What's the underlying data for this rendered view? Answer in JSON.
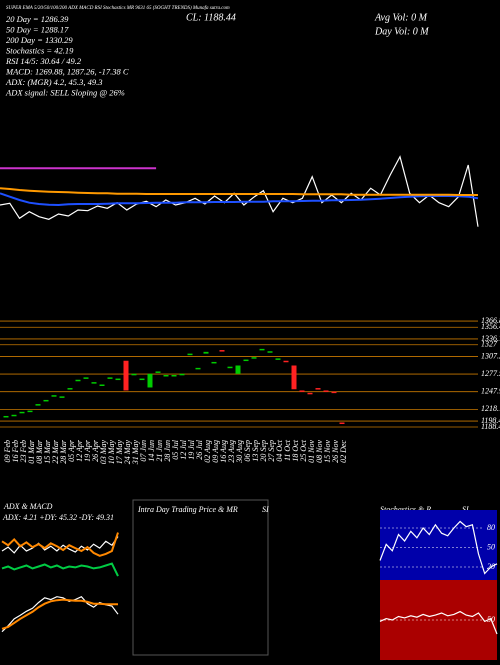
{
  "header": {
    "top_line": "SUPER EMA 5/20/50/100/200 ADX MACD RSI Stochastics MR 9631 65 (SOGHT TRENDS) Munafa sutra.com",
    "lines": [
      "20 Day = 1286.39",
      "50 Day = 1288.17",
      "200 Day = 1330.29",
      "Stochastics = 42.19",
      "RSI 14/5: 30.64 / 49.2",
      "MACD: 1269.88, 1287.26, -17.38  C",
      "ADX:      (MGR) 4.2, 45.3, 49.3",
      "ADX  signal: SELL Sloping @ 26%"
    ],
    "center": "CL: 1188.44",
    "right": [
      "Avg Vol: 0  M",
      "Day Vol: 0  M"
    ]
  },
  "panels": {
    "adx_title": "ADX  & MACD",
    "adx_stats": "ADX: 4.21 +DY: 45.32 -DY: 49.31",
    "intraday_title": "Intra Day Trading Price  & MR",
    "intraday_si": "SI",
    "stoch_title": "Stochastics & R",
    "stoch_si": "SI"
  },
  "chart_data": [
    {
      "type": "line",
      "ylim": [
        1150,
        1420
      ],
      "series": [
        {
          "color": "#ffffff",
          "values": [
            1255,
            1260,
            1215,
            1235,
            1220,
            1212,
            1228,
            1222,
            1240,
            1238,
            1252,
            1245,
            1262,
            1240,
            1258,
            1266,
            1250,
            1270,
            1255,
            1262,
            1275,
            1258,
            1282,
            1262,
            1290,
            1255,
            1278,
            1298,
            1235,
            1275,
            1262,
            1275,
            1340,
            1262,
            1285,
            1262,
            1290,
            1270,
            1305,
            1285,
            1345,
            1400,
            1290,
            1262,
            1285,
            1262,
            1250,
            1280,
            1375,
            1190
          ]
        },
        {
          "color": "#1e50ff",
          "values": [
            1290,
            1280,
            1270,
            1262,
            1258,
            1256,
            1255,
            1257,
            1258,
            1258,
            1258,
            1259,
            1260,
            1260,
            1260,
            1261,
            1262,
            1262,
            1262,
            1263,
            1263,
            1263,
            1264,
            1264,
            1264,
            1265,
            1265,
            1265,
            1266,
            1266,
            1266,
            1267,
            1268,
            1268,
            1269,
            1269,
            1270,
            1271,
            1272,
            1274,
            1276,
            1278,
            1280,
            1281,
            1282,
            1282,
            1282,
            1281,
            1280,
            1275
          ]
        },
        {
          "color": "#ff9900",
          "values": [
            1305,
            1303,
            1300,
            1298,
            1296,
            1295,
            1294,
            1293,
            1292,
            1291,
            1290,
            1290,
            1289,
            1289,
            1289,
            1288,
            1288,
            1288,
            1288,
            1288,
            1288,
            1288,
            1288,
            1288,
            1288,
            1288,
            1288,
            1288,
            1288,
            1288,
            1288,
            1287,
            1287,
            1287,
            1287,
            1287,
            1286,
            1286,
            1286,
            1286,
            1286,
            1286,
            1286,
            1286,
            1286,
            1286,
            1286,
            1285,
            1285,
            1285
          ]
        },
        {
          "color": "#cc33cc",
          "values": [
            1365,
            1365,
            1365,
            1365,
            1365,
            1365,
            1365,
            1365,
            1365,
            1365,
            1365,
            1365,
            1365,
            1365,
            1365,
            1365,
            1365,
            null,
            null,
            null,
            null,
            null,
            null,
            null,
            null,
            null,
            null,
            null,
            null,
            null,
            null,
            null,
            null,
            null,
            null,
            null,
            null,
            null,
            null,
            null,
            null,
            null,
            null,
            null,
            null,
            null,
            null,
            null,
            null,
            null
          ]
        }
      ]
    },
    {
      "type": "candlestick",
      "ylim": [
        1180,
        1372
      ],
      "grid_color": "#c87800",
      "yticks": [
        1366.88,
        1356.42,
        1336.71,
        1327,
        1307.28,
        1277.57,
        1247.9,
        1218.15,
        1198.44,
        1188.44
      ],
      "categories": [
        "09 Feb",
        "16 Feb",
        "23 Feb",
        "01 Mar",
        "08 Mar",
        "15 Mar",
        "22 Mar",
        "28 Mar",
        "05 Apr",
        "12 Apr",
        "19 Apr",
        "26 Apr",
        "03 May",
        "10 May",
        "17 May",
        "24 May",
        "31 May",
        "07 Jun",
        "14 Jun",
        "21 Jun",
        "28 Jun",
        "05 Jul",
        "12 Jul",
        "19 Jul",
        "26 Jul",
        "02 Aug",
        "09 Aug",
        "16 Aug",
        "23 Aug",
        "30 Aug",
        "06 Sep",
        "13 Sep",
        "20 Sep",
        "27 Sep",
        "04 Oct",
        "11 Oct",
        "18 Oct",
        "25 Oct",
        "01 Nov",
        "08 Nov",
        "15 Nov",
        "26 Nov",
        "02 Dec"
      ],
      "open": [
        1205,
        1207,
        1212,
        1215,
        1225,
        1232,
        1240,
        1238,
        1252,
        1266,
        1270,
        1262,
        1258,
        1270,
        1268,
        1300,
        1276,
        1268,
        1255,
        1280,
        1274,
        1274,
        1276,
        1310,
        1286,
        1312,
        1296,
        1318,
        1288,
        1278,
        1300,
        1304,
        1318,
        1314,
        1302,
        1300,
        1292,
        1250,
        1246,
        1254,
        1250,
        1248,
        1196
      ],
      "close": [
        1207,
        1209,
        1214,
        1216,
        1227,
        1234,
        1242,
        1240,
        1254,
        1268,
        1272,
        1264,
        1260,
        1272,
        1270,
        1250,
        1278,
        1270,
        1278,
        1282,
        1276,
        1276,
        1278,
        1312,
        1288,
        1315,
        1298,
        1316,
        1290,
        1292,
        1302,
        1306,
        1320,
        1316,
        1304,
        1298,
        1252,
        1248,
        1244,
        1252,
        1248,
        1246,
        1194
      ]
    },
    {
      "type": "line",
      "ylim": [
        0,
        60
      ],
      "series": [
        {
          "color": "#ffffff",
          "values": [
            30,
            34,
            28,
            36,
            30,
            33,
            38,
            31,
            35,
            30,
            36,
            32,
            29,
            35,
            31,
            37,
            33,
            40,
            36,
            45
          ]
        },
        {
          "color": "#ff8800",
          "values": [
            40,
            36,
            42,
            35,
            39,
            34,
            37,
            33,
            38,
            35,
            31,
            36,
            33,
            30,
            34,
            28,
            25,
            27,
            30,
            49
          ]
        },
        {
          "color": "#00cc44",
          "values": [
            12,
            14,
            11,
            13,
            15,
            12,
            14,
            16,
            13,
            15,
            12,
            14,
            13,
            15,
            14,
            12,
            13,
            15,
            17,
            4
          ]
        }
      ]
    },
    {
      "type": "line",
      "ylim": [
        1200,
        1320
      ],
      "series": [
        {
          "color": "#ffffff",
          "values": [
            1240,
            1250,
            1262,
            1268,
            1275,
            1280,
            1290,
            1298,
            1295,
            1300,
            1298,
            1292,
            1295,
            1300,
            1288,
            1282,
            1290,
            1286,
            1284,
            1270
          ]
        },
        {
          "color": "#ff8800",
          "values": [
            1245,
            1248,
            1255,
            1262,
            1268,
            1274,
            1282,
            1288,
            1292,
            1294,
            1295,
            1294,
            1293,
            1293,
            1291,
            1288,
            1288,
            1287,
            1287,
            1287
          ]
        }
      ]
    },
    {
      "type": "line",
      "ylim": [
        0,
        100
      ],
      "yticks": [
        80,
        50,
        20
      ],
      "bg": "#0000aa",
      "series": [
        {
          "color": "#ffffff",
          "values": [
            30,
            55,
            45,
            70,
            60,
            75,
            65,
            80,
            70,
            85,
            72,
            68,
            80,
            90,
            82,
            85,
            40,
            10,
            20,
            25
          ]
        }
      ]
    },
    {
      "type": "line",
      "ylim": [
        0,
        100
      ],
      "yticks": [
        50
      ],
      "bg": "#aa0000",
      "series": [
        {
          "color": "#ffffff",
          "values": [
            48,
            52,
            50,
            55,
            53,
            56,
            54,
            58,
            55,
            57,
            60,
            56,
            58,
            62,
            57,
            55,
            60,
            48,
            52,
            30
          ]
        }
      ]
    }
  ]
}
